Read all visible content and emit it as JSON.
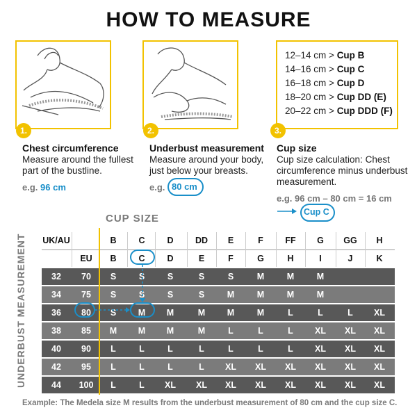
{
  "title": "HOW TO MEASURE",
  "steps": [
    {
      "number": "1.",
      "title": "Chest circumference",
      "desc_1": "Measure around the fullest",
      "desc_2": "part of the bustline.",
      "example_prefix": "e.g.",
      "example_value": "96 cm",
      "illustration": "woman-measuring-chest"
    },
    {
      "number": "2.",
      "title": "Underbust measurement",
      "desc_1": "Measure around your body,",
      "desc_2": "just below your breasts.",
      "example_prefix": "e.g.",
      "example_value": "80 cm",
      "illustration": "woman-measuring-underbust"
    },
    {
      "number": "3.",
      "title": "Cup size",
      "desc_1": "Cup size calculation: Chest",
      "desc_2": "circumference minus underbust",
      "desc_3": "measurement.",
      "example": "e.g. 96 cm – 80 cm = 16 cm",
      "result": "Cup C"
    }
  ],
  "cup_ranges": [
    {
      "range": "12–14 cm >",
      "cup": "Cup B"
    },
    {
      "range": "14–16 cm >",
      "cup": "Cup C"
    },
    {
      "range": "16–18 cm >",
      "cup": "Cup D"
    },
    {
      "range": "18–20 cm >",
      "cup": "Cup DD (E)"
    },
    {
      "range": "20–22 cm >",
      "cup": "Cup DDD (F)"
    }
  ],
  "table": {
    "cup_size_label": "CUP SIZE",
    "underbust_label": "UNDERBUST MEASUREMENT",
    "header_ukau": [
      "UK/AU",
      "",
      "B",
      "C",
      "D",
      "DD",
      "E",
      "F",
      "FF",
      "G",
      "GG",
      "H"
    ],
    "header_eu": [
      "",
      "EU",
      "B",
      "C",
      "D",
      "E",
      "F",
      "G",
      "H",
      "I",
      "J",
      "K"
    ],
    "rows": [
      [
        "32",
        "70",
        "S",
        "S",
        "S",
        "S",
        "S",
        "M",
        "M",
        "M",
        "",
        ""
      ],
      [
        "34",
        "75",
        "S",
        "S",
        "S",
        "S",
        "M",
        "M",
        "M",
        "M",
        "",
        ""
      ],
      [
        "36",
        "80",
        "S",
        "M",
        "M",
        "M",
        "M",
        "M",
        "L",
        "L",
        "L",
        "XL"
      ],
      [
        "38",
        "85",
        "M",
        "M",
        "M",
        "M",
        "L",
        "L",
        "L",
        "XL",
        "XL",
        "XL"
      ],
      [
        "40",
        "90",
        "L",
        "L",
        "L",
        "L",
        "L",
        "L",
        "L",
        "XL",
        "XL",
        "XL"
      ],
      [
        "42",
        "95",
        "L",
        "L",
        "L",
        "L",
        "XL",
        "XL",
        "XL",
        "XL",
        "XL",
        "XL"
      ],
      [
        "44",
        "100",
        "L",
        "L",
        "XL",
        "XL",
        "XL",
        "XL",
        "XL",
        "XL",
        "XL",
        "XL"
      ]
    ]
  },
  "footer": "Example: The Medela size M results from the underbust measurement of 80 cm and the cup size C.",
  "colors": {
    "accent": "#f2c200",
    "highlight": "#1a8fc9",
    "row_dark": "#585858",
    "row_light": "#7b7b7b"
  }
}
